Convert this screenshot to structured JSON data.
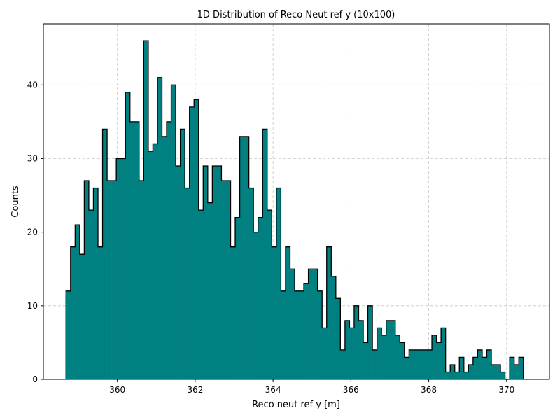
{
  "chart_data": {
    "type": "bar",
    "title": "1D Distribution of Reco Neut ref y (10x100)",
    "xlabel": "Reco neut ref y [m]",
    "ylabel": "Counts",
    "xlim": [
      358.1,
      371.1
    ],
    "ylim": [
      0,
      48.3
    ],
    "xticks": [
      360,
      362,
      364,
      366,
      368,
      370
    ],
    "yticks": [
      0,
      10,
      20,
      30,
      40
    ],
    "grid": true,
    "bin_start": 358.68,
    "bin_width": 0.1175,
    "fill_color": "#008080",
    "edge_color": "#000000",
    "counts": [
      12,
      18,
      21,
      17,
      27,
      23,
      26,
      18,
      34,
      27,
      27,
      30,
      30,
      39,
      35,
      35,
      27,
      46,
      31,
      32,
      41,
      33,
      35,
      40,
      29,
      34,
      26,
      37,
      38,
      23,
      29,
      24,
      29,
      29,
      27,
      27,
      18,
      22,
      33,
      33,
      26,
      20,
      22,
      34,
      23,
      18,
      26,
      12,
      18,
      15,
      12,
      12,
      13,
      15,
      15,
      12,
      7,
      18,
      14,
      11,
      4,
      8,
      7,
      10,
      8,
      5,
      10,
      4,
      7,
      6,
      8,
      8,
      6,
      5,
      3,
      4,
      4,
      4,
      4,
      4,
      6,
      5,
      7,
      1,
      2,
      1,
      3,
      1,
      2,
      3,
      4,
      3,
      4,
      2,
      2,
      1,
      0,
      3,
      2,
      3
    ]
  }
}
